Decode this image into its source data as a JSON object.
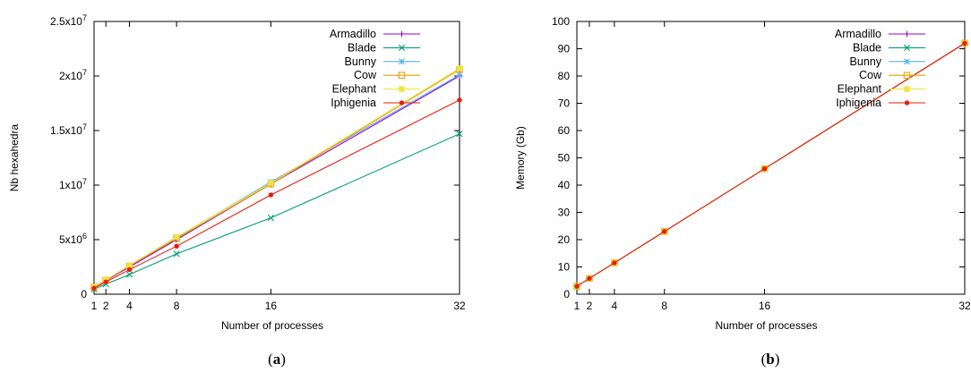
{
  "chart_data": [
    {
      "type": "line",
      "panel": "a",
      "caption_open": "(",
      "caption_letter": "a",
      "caption_close": ")",
      "xlabel": "Number of processes",
      "ylabel": "Nb hexahedra",
      "x": [
        1,
        2,
        4,
        8,
        16,
        32
      ],
      "xticks": [
        "1",
        "2",
        "4",
        "8",
        "16",
        "32"
      ],
      "xlim": [
        1,
        32
      ],
      "ylim": [
        0,
        25000000
      ],
      "yticks": [
        {
          "value": 0,
          "base": "0",
          "exp": ""
        },
        {
          "value": 5000000,
          "base": "5x10",
          "exp": "6"
        },
        {
          "value": 10000000,
          "base": "1x10",
          "exp": "7"
        },
        {
          "value": 15000000,
          "base": "1.5x10",
          "exp": "7"
        },
        {
          "value": 20000000,
          "base": "2x10",
          "exp": "7"
        },
        {
          "value": 25000000,
          "base": "2.5x10",
          "exp": "7"
        }
      ],
      "legend_position": "top-right",
      "series": [
        {
          "name": "Armadillo",
          "color": "#9400d3",
          "marker": "plus",
          "values": [
            630000,
            1250000,
            2500000,
            5000000,
            10100000,
            20000000
          ]
        },
        {
          "name": "Blade",
          "color": "#009e73",
          "marker": "x",
          "values": [
            460000,
            920000,
            1800000,
            3700000,
            7000000,
            14700000
          ]
        },
        {
          "name": "Bunny",
          "color": "#56b4e9",
          "marker": "star",
          "values": [
            640000,
            1300000,
            2600000,
            5200000,
            10300000,
            20100000
          ]
        },
        {
          "name": "Cow",
          "color": "#e69f00",
          "marker": "square",
          "values": [
            650000,
            1300000,
            2600000,
            5100000,
            10100000,
            20600000
          ]
        },
        {
          "name": "Elephant",
          "color": "#f0e442",
          "marker": "filled-square",
          "values": [
            660000,
            1320000,
            2650000,
            5250000,
            10200000,
            20700000
          ]
        },
        {
          "name": "Iphigenia",
          "color": "#e51e10",
          "marker": "circle",
          "values": [
            560000,
            1120000,
            2250000,
            4400000,
            9100000,
            17800000
          ]
        }
      ]
    },
    {
      "type": "line",
      "panel": "b",
      "caption_open": "(",
      "caption_letter": "b",
      "caption_close": ")",
      "xlabel": "Number of processes",
      "ylabel": "Memory (Gb)",
      "x": [
        1,
        2,
        4,
        8,
        16,
        32
      ],
      "xticks": [
        "1",
        "2",
        "4",
        "8",
        "16",
        "32"
      ],
      "xlim": [
        1,
        32
      ],
      "ylim": [
        0,
        100
      ],
      "yticks": [
        {
          "value": 0,
          "base": "0",
          "exp": ""
        },
        {
          "value": 10,
          "base": "10",
          "exp": ""
        },
        {
          "value": 20,
          "base": "20",
          "exp": ""
        },
        {
          "value": 30,
          "base": "30",
          "exp": ""
        },
        {
          "value": 40,
          "base": "40",
          "exp": ""
        },
        {
          "value": 50,
          "base": "50",
          "exp": ""
        },
        {
          "value": 60,
          "base": "60",
          "exp": ""
        },
        {
          "value": 70,
          "base": "70",
          "exp": ""
        },
        {
          "value": 80,
          "base": "80",
          "exp": ""
        },
        {
          "value": 90,
          "base": "90",
          "exp": ""
        },
        {
          "value": 100,
          "base": "100",
          "exp": ""
        }
      ],
      "legend_position": "top-right",
      "series": [
        {
          "name": "Armadillo",
          "color": "#9400d3",
          "marker": "plus",
          "values": [
            2.9,
            5.8,
            11.5,
            23,
            46,
            92
          ]
        },
        {
          "name": "Blade",
          "color": "#009e73",
          "marker": "x",
          "values": [
            2.9,
            5.8,
            11.5,
            23,
            46,
            92
          ]
        },
        {
          "name": "Bunny",
          "color": "#56b4e9",
          "marker": "star",
          "values": [
            2.9,
            5.8,
            11.5,
            23,
            46,
            92
          ]
        },
        {
          "name": "Cow",
          "color": "#e69f00",
          "marker": "square",
          "values": [
            2.9,
            5.8,
            11.5,
            23,
            46,
            92
          ]
        },
        {
          "name": "Elephant",
          "color": "#f0e442",
          "marker": "filled-square",
          "values": [
            2.9,
            5.8,
            11.5,
            23,
            46,
            92
          ]
        },
        {
          "name": "Iphigenia",
          "color": "#e51e10",
          "marker": "circle",
          "values": [
            2.9,
            5.8,
            11.5,
            23,
            46,
            92
          ]
        }
      ]
    }
  ]
}
